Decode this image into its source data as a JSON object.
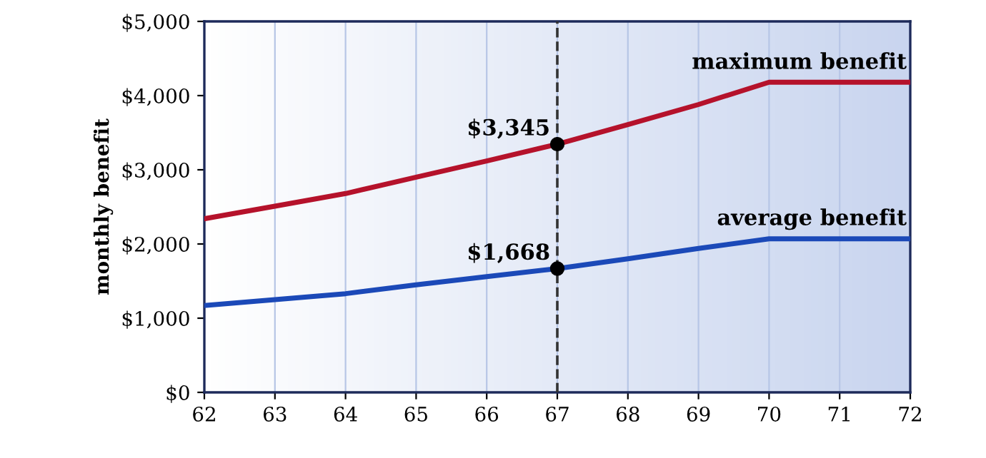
{
  "chart_data": {
    "type": "line",
    "ylabel": "monthly benefit",
    "x": [
      62,
      63,
      64,
      65,
      66,
      67,
      68,
      69,
      70,
      71,
      72
    ],
    "series": [
      {
        "name": "maximum benefit",
        "color": "#b5122b",
        "values": [
          2340,
          2510,
          2680,
          2900,
          3120,
          3345,
          3610,
          3880,
          4180,
          4180,
          4180
        ]
      },
      {
        "name": "average benefit",
        "color": "#1b49b8",
        "values": [
          1170,
          1250,
          1330,
          1450,
          1560,
          1668,
          1800,
          1940,
          2070,
          2070,
          2070
        ]
      },
      {
        "type": "scatter",
        "color": "#000000",
        "marker": "circle",
        "x": [
          67,
          67
        ],
        "values": [
          3345,
          1668
        ]
      }
    ],
    "annotations": [
      {
        "text": "$3,345",
        "x": 67,
        "y": 3345
      },
      {
        "text": "$1,668",
        "x": 67,
        "y": 1668
      }
    ],
    "ref_lines": [
      {
        "axis": "x",
        "value": 67,
        "color": "#333333",
        "line_style": "dashed"
      }
    ],
    "xlim": [
      62,
      72
    ],
    "xticks": [
      62,
      63,
      64,
      65,
      66,
      67,
      68,
      69,
      70,
      71,
      72
    ],
    "ylim": [
      0,
      5000
    ],
    "yticks": [
      {
        "value": 0,
        "label": "$0"
      },
      {
        "value": 1000,
        "label": "$1,000"
      },
      {
        "value": 2000,
        "label": "$2,000"
      },
      {
        "value": 3000,
        "label": "$3,000"
      },
      {
        "value": 4000,
        "label": "$4,000"
      },
      {
        "value": 5000,
        "label": "$5,000"
      }
    ],
    "grid": "x",
    "legend": false,
    "line_style": "solid"
  }
}
